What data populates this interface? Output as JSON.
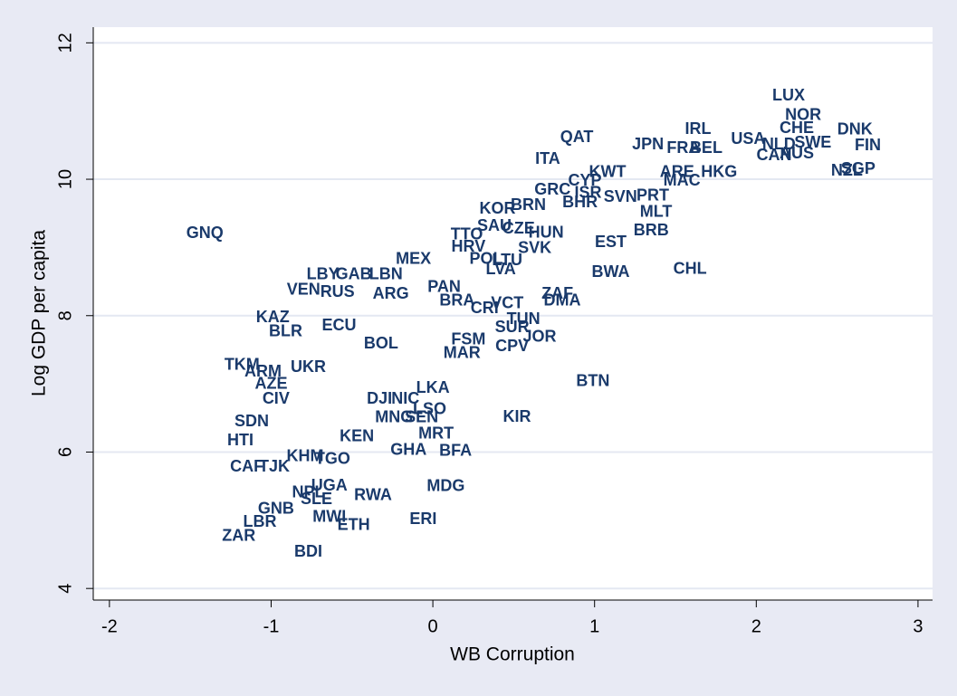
{
  "chart_data": {
    "type": "scatter",
    "xlabel": "WB Corruption",
    "ylabel": "Log GDP per capita",
    "xlim": [
      -2.1,
      3.09
    ],
    "ylim": [
      3.83,
      12.23
    ],
    "xticks": [
      -2,
      -1,
      0,
      1,
      2,
      3
    ],
    "yticks": [
      4,
      6,
      8,
      10,
      12
    ],
    "grid": true,
    "color": "#1a3a6b",
    "labels": [
      "LUX",
      "NOR",
      "IRL",
      "QAT",
      "DNK",
      "CHE",
      "FIN",
      "USA",
      "JPN",
      "FRA",
      "BEL",
      "NLD",
      "SWE",
      "AUS",
      "CAN",
      "ITA",
      "SGP",
      "NZL",
      "KWT",
      "ARE",
      "HKG",
      "MAC",
      "CYP",
      "GRC",
      "ISR",
      "SVN",
      "PRT",
      "BHR",
      "MLT",
      "KOR",
      "BRN",
      "SAU",
      "CZE",
      "GNQ",
      "TTO",
      "HUN",
      "MEX",
      "BRB",
      "EST",
      "SVK",
      "HRV",
      "POL",
      "LTU",
      "LVA",
      "BWA",
      "CHL",
      "LBY",
      "GAB",
      "LBN",
      "VEN",
      "RUS",
      "ARG",
      "PAN",
      "BRA",
      "CRI",
      "VCT",
      "ZAF",
      "DMA",
      "KAZ",
      "BLR",
      "TUN",
      "SUR",
      "JOR",
      "FSM",
      "CPV",
      "MAR",
      "BTN",
      "TKM",
      "UKR",
      "AZE",
      "CIV",
      "LKA",
      "DJI",
      "NIC",
      "KIR",
      "SDN",
      "MNG",
      "SEN",
      "LSO",
      "MRT",
      "GHA",
      "BFA",
      "TGO",
      "HTI",
      "CAF",
      "TJK",
      "MDG",
      "UGA",
      "NPL",
      "SLE",
      "RWA",
      "GNB",
      "MWI",
      "LBR",
      "ETH",
      "ERI",
      "ZAR",
      "BDI",
      "ECU",
      "BOL",
      "ARM",
      "KHM",
      "KEN"
    ],
    "x": [
      2.2,
      2.29,
      1.64,
      0.89,
      2.61,
      2.25,
      2.69,
      1.95,
      1.33,
      1.55,
      1.69,
      2.14,
      2.35,
      2.25,
      2.11,
      0.71,
      2.63,
      2.56,
      1.08,
      1.51,
      1.77,
      1.54,
      0.94,
      0.74,
      0.96,
      1.16,
      1.36,
      0.91,
      1.38,
      0.4,
      0.59,
      0.38,
      0.53,
      -1.41,
      0.21,
      0.7,
      -0.12,
      1.35,
      1.1,
      0.63,
      0.22,
      0.33,
      0.46,
      0.42,
      1.1,
      1.59,
      -0.68,
      -0.49,
      -0.29,
      -0.8,
      -0.59,
      -0.26,
      0.07,
      0.15,
      0.32,
      0.46,
      0.77,
      0.8,
      -0.99,
      -0.91,
      0.56,
      0.49,
      0.66,
      0.22,
      0.49,
      0.18,
      0.99,
      -1.18,
      -0.77,
      -1.0,
      -0.97,
      0.0,
      -0.33,
      -0.17,
      0.52,
      -1.12,
      -0.24,
      -0.07,
      -0.02,
      0.02,
      -0.15,
      0.14,
      -0.62,
      -1.19,
      -1.15,
      -0.98,
      0.08,
      -0.64,
      -0.77,
      -0.72,
      -0.37,
      -0.97,
      -0.64,
      -1.07,
      -0.49,
      -0.06,
      -1.2,
      -0.77,
      -0.58,
      -0.32,
      -1.05,
      -0.79,
      -0.47
    ],
    "values": [
      11.22,
      10.93,
      10.73,
      10.61,
      10.72,
      10.74,
      10.49,
      10.58,
      10.5,
      10.45,
      10.45,
      10.5,
      10.53,
      10.37,
      10.34,
      10.29,
      10.14,
      10.12,
      10.1,
      10.1,
      10.1,
      9.97,
      9.97,
      9.84,
      9.79,
      9.73,
      9.75,
      9.65,
      9.51,
      9.56,
      9.61,
      9.31,
      9.27,
      9.2,
      9.18,
      9.21,
      8.82,
      9.24,
      9.07,
      8.98,
      9.0,
      8.82,
      8.8,
      8.67,
      8.63,
      8.68,
      8.6,
      8.6,
      8.6,
      8.37,
      8.34,
      8.31,
      8.41,
      8.21,
      8.1,
      8.17,
      8.31,
      8.21,
      7.97,
      7.76,
      7.94,
      7.82,
      7.68,
      7.64,
      7.54,
      7.44,
      7.03,
      7.27,
      7.24,
      6.99,
      6.77,
      6.93,
      6.77,
      6.77,
      6.51,
      6.44,
      6.5,
      6.5,
      6.62,
      6.26,
      6.02,
      6.01,
      5.89,
      6.16,
      5.78,
      5.78,
      5.49,
      5.5,
      5.4,
      5.3,
      5.36,
      5.16,
      5.04,
      4.97,
      4.92,
      5.01,
      4.76,
      4.53,
      7.85,
      7.58,
      7.17,
      5.93,
      6.22
    ]
  }
}
